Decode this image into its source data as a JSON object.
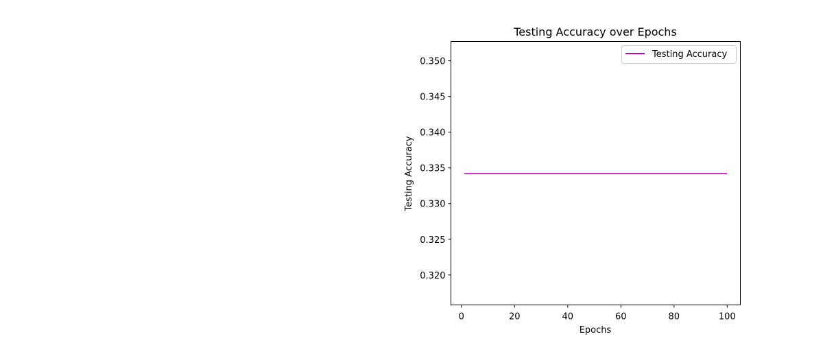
{
  "chart_data": {
    "type": "line",
    "title": "Testing Accuracy over Epochs",
    "xlabel": "Epochs",
    "ylabel": "Testing Accuracy",
    "xlim": [
      -3.95,
      104.95
    ],
    "ylim": [
      0.3158,
      0.3527
    ],
    "x_ticks": [
      0,
      20,
      40,
      60,
      80,
      100
    ],
    "y_ticks": [
      0.32,
      0.325,
      0.33,
      0.335,
      0.34,
      0.345,
      0.35
    ],
    "x_tick_labels": [
      "0",
      "20",
      "40",
      "60",
      "80",
      "100"
    ],
    "y_tick_labels": [
      "0.320",
      "0.325",
      "0.330",
      "0.335",
      "0.340",
      "0.345",
      "0.350"
    ],
    "grid": false,
    "legend_position": "top-right",
    "series": [
      {
        "name": "Testing Accuracy",
        "color": "#bf00bf",
        "x": [
          1,
          100
        ],
        "y": [
          0.3342,
          0.3342
        ]
      }
    ]
  }
}
